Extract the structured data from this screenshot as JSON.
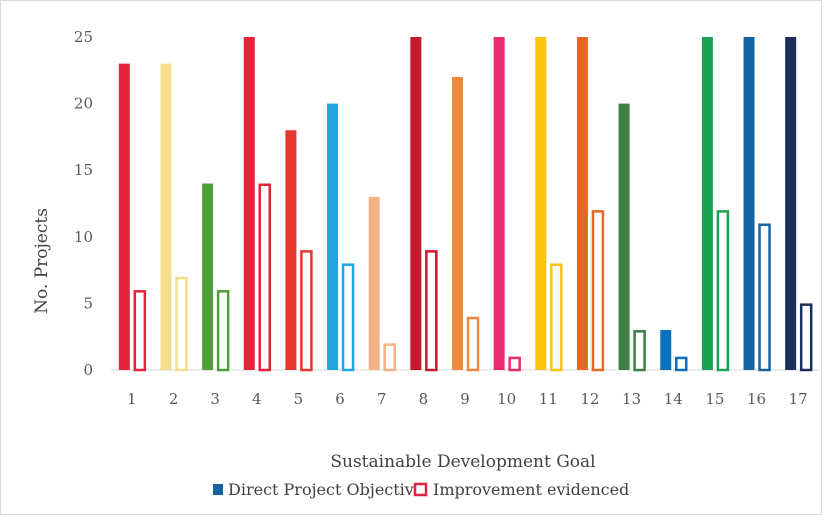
{
  "chart_data": {
    "type": "bar",
    "xlabel": "Sustainable Development Goal",
    "ylabel": "No. Projects",
    "ylim": [
      0,
      25
    ],
    "yticks": [
      0,
      5,
      10,
      15,
      20,
      25
    ],
    "grid": false,
    "legend_position": "bottom",
    "categories": [
      "1",
      "2",
      "3",
      "4",
      "5",
      "6",
      "7",
      "8",
      "9",
      "10",
      "11",
      "12",
      "13",
      "14",
      "15",
      "16",
      "17"
    ],
    "category_colors": [
      "#e5243b",
      "#f5dd8c",
      "#4c9f38",
      "#e5243b",
      "#e5372f",
      "#1fa6df",
      "#f3b386",
      "#c5192d",
      "#f08a3b",
      "#ed2a6f",
      "#fcc30b",
      "#e86728",
      "#3f7e44",
      "#0a6fbe",
      "#1aa153",
      "#1663a2",
      "#19305d"
    ],
    "series": [
      {
        "name": "Direct Project Objective",
        "style": "filled",
        "values": [
          23,
          23,
          14,
          25,
          18,
          20,
          13,
          25,
          22,
          25,
          25,
          25,
          20,
          3,
          25,
          25,
          25
        ]
      },
      {
        "name": "Improvement evidenced",
        "style": "outlined",
        "values": [
          6,
          7,
          6,
          14,
          9,
          8,
          2,
          9,
          4,
          1,
          8,
          12,
          3,
          1,
          12,
          11,
          5
        ]
      }
    ],
    "legend_colors": {
      "direct": "#1663a2",
      "improvement": "#e5243b"
    }
  }
}
